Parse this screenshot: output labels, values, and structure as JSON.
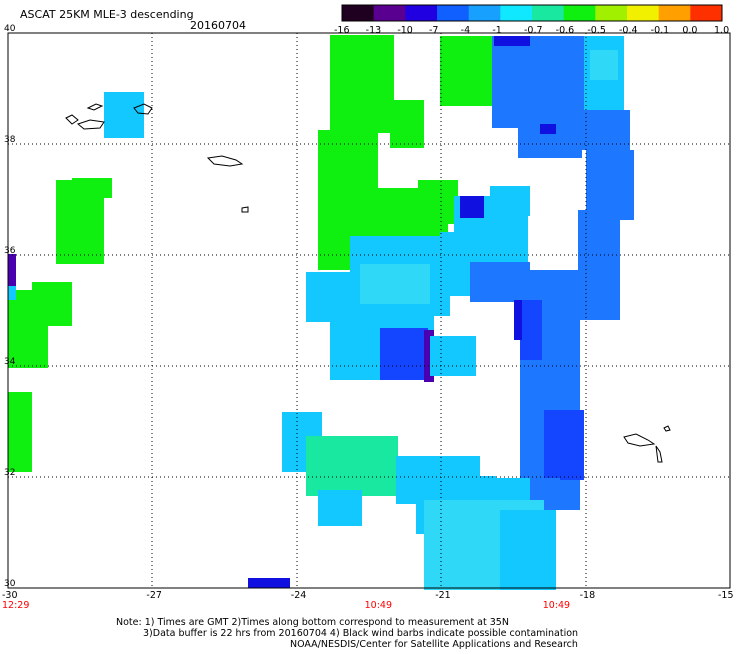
{
  "header": {
    "title": "ASCAT 25KM MLE-3 descending",
    "date": "20160704"
  },
  "colorbar": {
    "tick_labels": [
      "-16",
      "-13",
      "-10",
      "-7",
      "-4",
      "-1",
      "-0.7",
      "-0.6",
      "-0.5",
      "-0.4",
      "-0.1",
      "0.0",
      "1.0"
    ],
    "colors": [
      "#200020",
      "#5a0090",
      "#2000e0",
      "#1060ff",
      "#18a0ff",
      "#10e8ff",
      "#18e8a0",
      "#10f010",
      "#a0f000",
      "#f0f000",
      "#ffa000",
      "#ff3000"
    ]
  },
  "map": {
    "lat_range": [
      30,
      40
    ],
    "lon_range": [
      -30,
      -15
    ],
    "lat_labels": [
      "40",
      "38",
      "36",
      "34",
      "32",
      "30"
    ],
    "lon_labels": [
      "-30",
      "-27",
      "-24",
      "-21",
      "-18",
      "-15"
    ],
    "time_labels": [
      {
        "lon": -30,
        "text": "12:29"
      },
      {
        "lon": -22.3,
        "text": "10:49"
      },
      {
        "lon": -18.6,
        "text": "10:49"
      }
    ],
    "colors": {
      "green": "#10f010",
      "cyan": "#12c8ff",
      "cyan_light": "#30d8f8",
      "blue": "#1e78ff",
      "blue_deep": "#1446ff",
      "navy": "#1010e0",
      "purple": "#4a00b0",
      "teal": "#18e8a0"
    }
  },
  "notes": {
    "line1": "Note: 1) Times are GMT 2)Times along bottom correspond to measurement at 35N",
    "line2": "3)Data buffer is 22 hrs from 20160704 4) Black wind barbs indicate possible contamination",
    "line3": "NOAA/NESDIS/Center for Satellite Applications and Research"
  }
}
